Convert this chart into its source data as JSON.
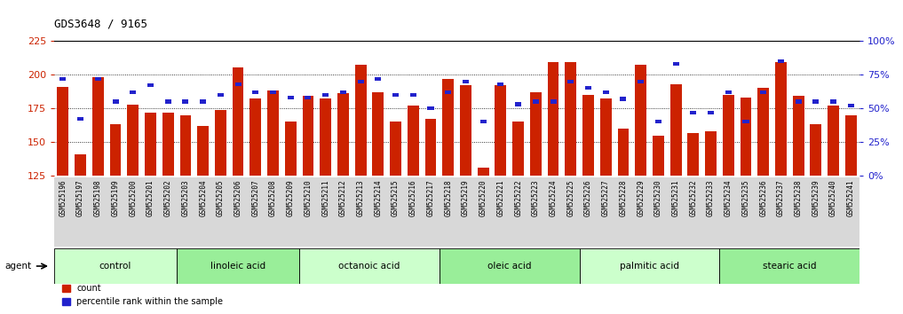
{
  "title": "GDS3648 / 9165",
  "samples": [
    "GSM525196",
    "GSM525197",
    "GSM525198",
    "GSM525199",
    "GSM525200",
    "GSM525201",
    "GSM525202",
    "GSM525203",
    "GSM525204",
    "GSM525205",
    "GSM525206",
    "GSM525207",
    "GSM525208",
    "GSM525209",
    "GSM525210",
    "GSM525211",
    "GSM525212",
    "GSM525213",
    "GSM525214",
    "GSM525215",
    "GSM525216",
    "GSM525217",
    "GSM525218",
    "GSM525219",
    "GSM525220",
    "GSM525221",
    "GSM525222",
    "GSM525223",
    "GSM525224",
    "GSM525225",
    "GSM525226",
    "GSM525227",
    "GSM525228",
    "GSM525229",
    "GSM525230",
    "GSM525231",
    "GSM525232",
    "GSM525233",
    "GSM525234",
    "GSM525235",
    "GSM525236",
    "GSM525237",
    "GSM525238",
    "GSM525239",
    "GSM525240",
    "GSM525241"
  ],
  "counts": [
    191,
    141,
    198,
    163,
    178,
    172,
    172,
    170,
    162,
    174,
    205,
    182,
    188,
    165,
    184,
    182,
    186,
    207,
    187,
    165,
    177,
    167,
    197,
    192,
    131,
    192,
    165,
    187,
    209,
    209,
    185,
    182,
    160,
    207,
    155,
    193,
    157,
    158,
    185,
    183,
    190,
    209,
    184,
    163,
    177,
    170
  ],
  "percentile_ranks": [
    72,
    42,
    72,
    55,
    62,
    67,
    55,
    55,
    55,
    60,
    68,
    62,
    62,
    58,
    58,
    60,
    62,
    70,
    72,
    60,
    60,
    50,
    62,
    70,
    40,
    68,
    53,
    55,
    55,
    70,
    65,
    62,
    57,
    70,
    40,
    83,
    47,
    47,
    62,
    40,
    62,
    85,
    55,
    55,
    55,
    52
  ],
  "groups": [
    {
      "name": "control",
      "start": 0,
      "end": 7
    },
    {
      "name": "linoleic acid",
      "start": 7,
      "end": 14
    },
    {
      "name": "octanoic acid",
      "start": 14,
      "end": 22
    },
    {
      "name": "oleic acid",
      "start": 22,
      "end": 30
    },
    {
      "name": "palmitic acid",
      "start": 30,
      "end": 38
    },
    {
      "name": "stearic acid",
      "start": 38,
      "end": 46
    }
  ],
  "group_colors": [
    "#ccffcc",
    "#99ee99",
    "#ccffcc",
    "#99ee99",
    "#ccffcc",
    "#99ee99"
  ],
  "ymin": 125,
  "ymax": 225,
  "yticks": [
    125,
    150,
    175,
    200,
    225
  ],
  "ygrid": [
    150,
    175,
    200
  ],
  "right_yticks": [
    0,
    25,
    50,
    75,
    100
  ],
  "bar_color": "#cc2200",
  "percentile_color": "#2222cc",
  "bg_color": "#ffffff",
  "tick_area_color": "#d8d8d8"
}
